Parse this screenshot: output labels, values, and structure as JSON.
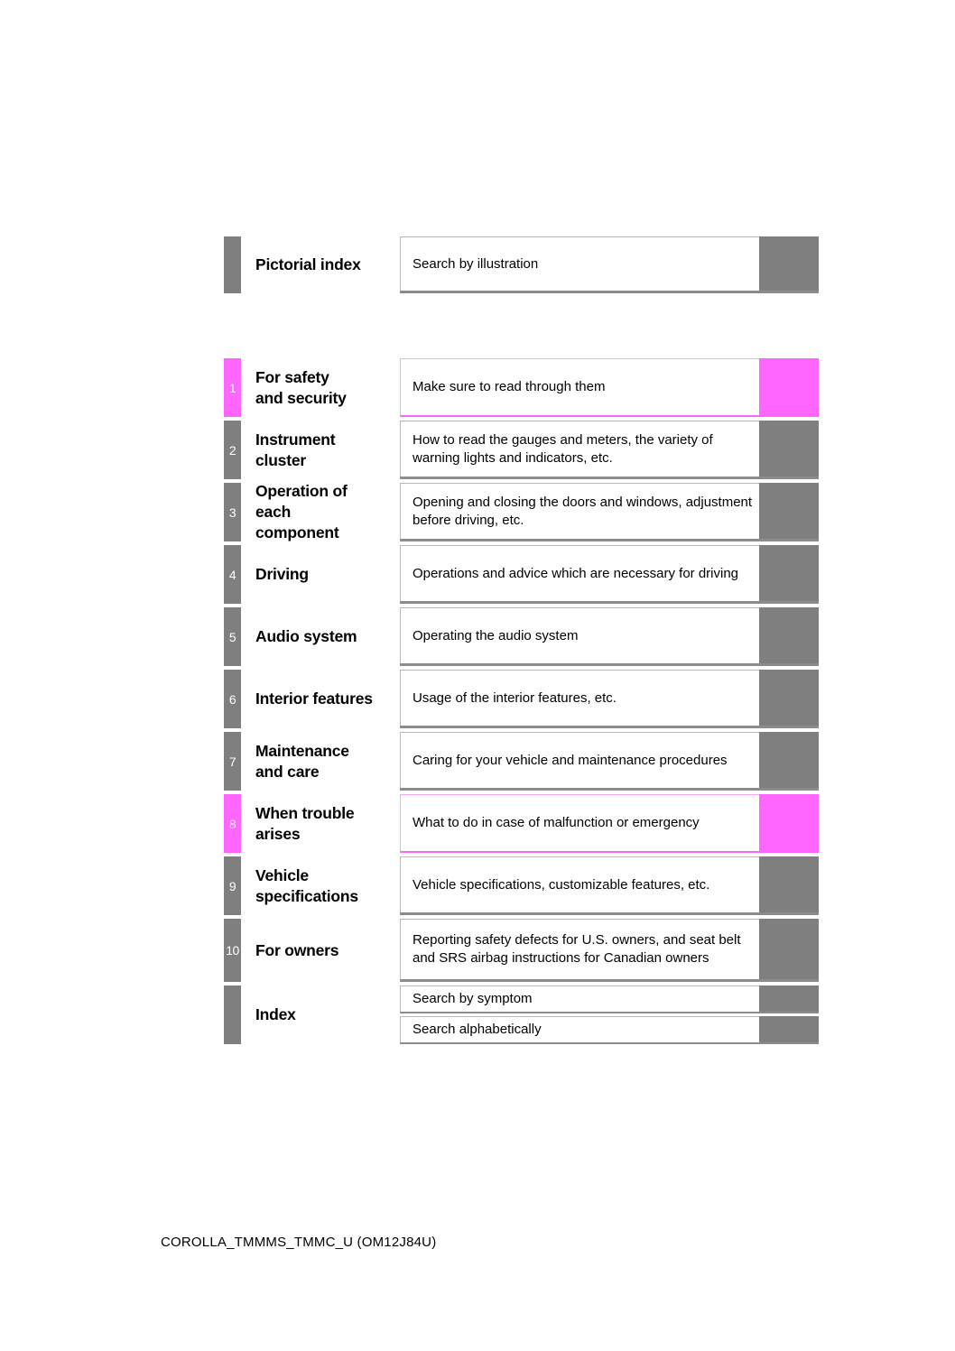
{
  "document": {
    "footer": "COROLLA_TMMMS_TMMC_U (OM12J84U)"
  },
  "colors": {
    "section_gray": "#7f7f7f",
    "highlight_pink": "#ff66ff",
    "box_border_light": "#b8b8b8",
    "box_border_bottom": "#8c8c8c"
  },
  "pictorial": {
    "title": "Pictorial index",
    "description": "Search by illustration"
  },
  "sections": [
    {
      "number": "1",
      "title": "For safety\nand security",
      "description": "Make sure to read through them",
      "highlight": "pink"
    },
    {
      "number": "2",
      "title": "Instrument\ncluster",
      "description": "How to read the gauges and meters, the variety of warning lights and indicators, etc.",
      "highlight": "gray"
    },
    {
      "number": "3",
      "title": "Operation of\neach\ncomponent",
      "description": "Opening and closing the doors and windows, adjustment before driving, etc.",
      "highlight": "gray"
    },
    {
      "number": "4",
      "title": "Driving",
      "description": "Operations and advice which are necessary for driving",
      "highlight": "gray"
    },
    {
      "number": "5",
      "title": "Audio system",
      "description": "Operating the audio system",
      "highlight": "gray"
    },
    {
      "number": "6",
      "title": "Interior features",
      "description": "Usage of the interior features, etc.",
      "highlight": "gray"
    },
    {
      "number": "7",
      "title": "Maintenance\nand care",
      "description": "Caring for your vehicle and maintenance procedures",
      "highlight": "gray"
    },
    {
      "number": "8",
      "title": "When trouble\narises",
      "description": "What to do in case of malfunction or emergency",
      "highlight": "pink"
    },
    {
      "number": "9",
      "title": "Vehicle\nspecifications",
      "description": "Vehicle specifications, customizable features, etc.",
      "highlight": "gray"
    },
    {
      "number": "10",
      "title": "For owners",
      "description": "Reporting safety defects for U.S. owners, and seat belt and SRS airbag instructions for Canadian owners",
      "highlight": "gray"
    }
  ],
  "index_section": {
    "title": "Index",
    "items": [
      {
        "description": "Search by symptom"
      },
      {
        "description": "Search alphabetically"
      }
    ]
  }
}
